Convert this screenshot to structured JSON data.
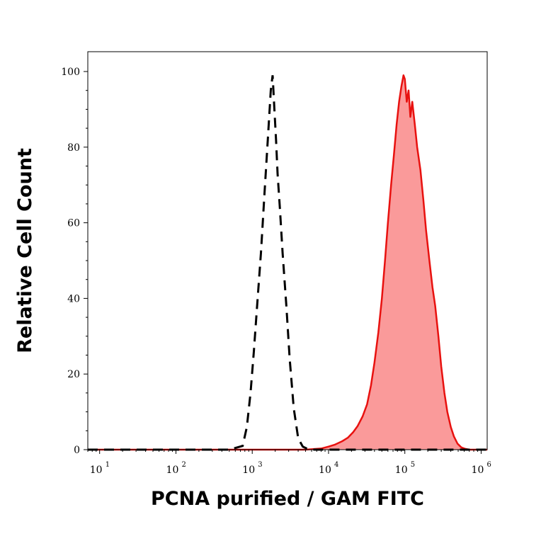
{
  "chart_data": {
    "type": "area",
    "title": "",
    "xlabel": "PCNA purified / GAM FITC",
    "ylabel": "Relative Cell Count",
    "x_scale": "log",
    "xlim": [
      7,
      1200000
    ],
    "ylim": [
      0,
      100
    ],
    "x_ticks": [
      {
        "base": "10",
        "exp": "1",
        "value": 10
      },
      {
        "base": "10",
        "exp": "2",
        "value": 100
      },
      {
        "base": "10",
        "exp": "3",
        "value": 1000
      },
      {
        "base": "10",
        "exp": "4",
        "value": 10000
      },
      {
        "base": "10",
        "exp": "5",
        "value": 100000
      },
      {
        "base": "10",
        "exp": "6",
        "value": 1000000
      }
    ],
    "y_ticks": [
      "0",
      "20",
      "40",
      "60",
      "80",
      "100"
    ],
    "series": [
      {
        "style": "dashed",
        "color": "#000000",
        "filled": false,
        "x": [
          7,
          500,
          750,
          850,
          950,
          1050,
          1150,
          1300,
          1450,
          1600,
          1750,
          1850,
          1950,
          2050,
          2150,
          2300,
          2500,
          2800,
          3100,
          3500,
          4000,
          4600,
          5300,
          6500,
          9000,
          15000,
          60000,
          100000,
          200000,
          1200000
        ],
        "y": [
          0,
          0,
          1,
          6,
          15,
          26,
          37,
          52,
          68,
          82,
          95,
          99,
          90,
          82,
          73,
          64,
          52,
          38,
          24,
          11,
          3,
          0.8,
          0.2,
          0,
          0,
          0,
          0,
          0,
          0,
          0
        ]
      },
      {
        "style": "solid",
        "color": "#e8110f",
        "fill": "#fa9a9a",
        "filled": true,
        "x": [
          7,
          2000,
          5000,
          8000,
          10000,
          12000,
          15000,
          18000,
          21000,
          24000,
          28000,
          32000,
          36000,
          40000,
          45000,
          50000,
          55000,
          60000,
          66000,
          72000,
          78000,
          84000,
          90000,
          96000,
          100000,
          106000,
          112000,
          118000,
          125000,
          135000,
          145000,
          160000,
          175000,
          190000,
          210000,
          230000,
          250000,
          275000,
          300000,
          330000,
          360000,
          400000,
          440000,
          490000,
          550000,
          620000,
          700000,
          1200000
        ],
        "y": [
          0,
          0,
          0,
          0.3,
          0.8,
          1.3,
          2.2,
          3.2,
          4.6,
          6.2,
          8.8,
          12,
          17,
          23,
          31,
          40,
          50,
          60,
          70,
          78,
          86,
          92,
          96,
          99,
          98,
          92,
          95,
          88,
          92,
          86,
          80,
          74,
          66,
          58,
          50,
          43,
          38,
          30,
          22,
          15,
          10,
          6,
          3.5,
          1.6,
          0.6,
          0.2,
          0,
          0
        ]
      }
    ]
  }
}
